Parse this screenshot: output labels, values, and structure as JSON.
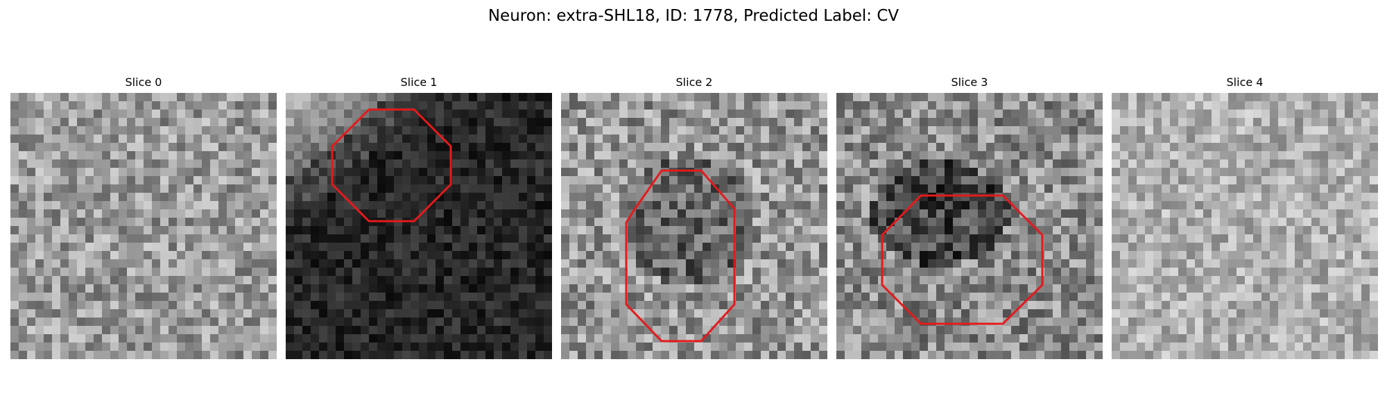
{
  "figure": {
    "title": "Neuron: extra-SHL18, ID: 1778, Predicted Label: CV"
  },
  "panels": [
    {
      "title": "Slice 0",
      "contour": false,
      "base": 155,
      "spread": 55
    },
    {
      "title": "Slice 1",
      "contour": true,
      "base": 40,
      "spread": 30
    },
    {
      "title": "Slice 2",
      "contour": true,
      "base": 150,
      "spread": 60
    },
    {
      "title": "Slice 3",
      "contour": true,
      "base": 140,
      "spread": 60
    },
    {
      "title": "Slice 4",
      "contour": false,
      "base": 175,
      "spread": 45
    }
  ],
  "colors": {
    "contour": "#e41a1c",
    "background": "#ffffff"
  }
}
